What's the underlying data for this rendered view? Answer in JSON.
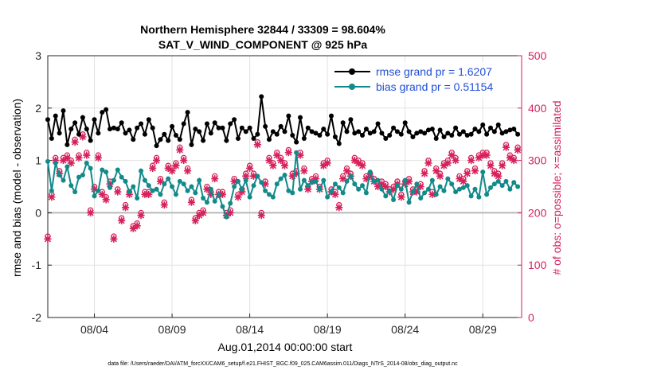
{
  "chart_data": {
    "type": "line",
    "title": "Northern Hemisphere 32844 / 33309 = 98.604%",
    "subtitle": "SAT_V_WIND_COMPONENT @ 925 hPa",
    "xlabel": "Aug.01,2014 00:00:00 start",
    "ylabel": "rmse and bias (model - observation)",
    "y2label": "# of obs: o=possible; ×=assimilated",
    "footer": "data file: /Users/raeder/DAI/ATM_forcXX/CAM6_setup/f.e21.FHIST_BGC.f09_025.CAM6assim.011/Diags_NTrS_2014-08/obs_diag_output.nc",
    "xlim": [
      1,
      31.5
    ],
    "ylim": [
      -2,
      3
    ],
    "y2lim": [
      0,
      500
    ],
    "x_ticks": [
      4,
      9,
      14,
      19,
      24,
      29
    ],
    "x_tick_labels": [
      "08/04",
      "08/09",
      "08/14",
      "08/19",
      "08/24",
      "08/29"
    ],
    "y_ticks": [
      -2,
      -1,
      0,
      1,
      2,
      3
    ],
    "y_tick_labels": [
      "-2",
      "-1",
      "0",
      "1",
      "2",
      "3"
    ],
    "y2_ticks": [
      0,
      100,
      200,
      300,
      400,
      500
    ],
    "y2_tick_labels": [
      "0",
      "100",
      "200",
      "300",
      "400",
      "500"
    ],
    "grid": true,
    "legend_position": "top-right",
    "zero_line": 0,
    "colors": {
      "rmse": "#000000",
      "bias": "#138a8a",
      "obs": "#d6215b",
      "legend_text": "#1f4fd6",
      "right_axis": "#d6215b"
    },
    "x": [
      1.0,
      1.25,
      1.5,
      1.75,
      2.0,
      2.25,
      2.5,
      2.75,
      3.0,
      3.25,
      3.5,
      3.75,
      4.0,
      4.25,
      4.5,
      4.75,
      5.0,
      5.25,
      5.5,
      5.75,
      6.0,
      6.25,
      6.5,
      6.75,
      7.0,
      7.25,
      7.5,
      7.75,
      8.0,
      8.25,
      8.5,
      8.75,
      9.0,
      9.25,
      9.5,
      9.75,
      10.0,
      10.25,
      10.5,
      10.75,
      11.0,
      11.25,
      11.5,
      11.75,
      12.0,
      12.25,
      12.5,
      12.75,
      13.0,
      13.25,
      13.5,
      13.75,
      14.0,
      14.25,
      14.5,
      14.75,
      15.0,
      15.25,
      15.5,
      15.75,
      16.0,
      16.25,
      16.5,
      16.75,
      17.0,
      17.25,
      17.5,
      17.75,
      18.0,
      18.25,
      18.5,
      18.75,
      19.0,
      19.25,
      19.5,
      19.75,
      20.0,
      20.25,
      20.5,
      20.75,
      21.0,
      21.25,
      21.5,
      21.75,
      22.0,
      22.25,
      22.5,
      22.75,
      23.0,
      23.25,
      23.5,
      23.75,
      24.0,
      24.25,
      24.5,
      24.75,
      25.0,
      25.25,
      25.5,
      25.75,
      26.0,
      26.25,
      26.5,
      26.75,
      27.0,
      27.25,
      27.5,
      27.75,
      28.0,
      28.25,
      28.5,
      28.75,
      29.0,
      29.25,
      29.5,
      29.75,
      30.0,
      30.25,
      30.5,
      30.75,
      31.0,
      31.25
    ],
    "series": [
      {
        "name": "rmse grand pr = 1.6207",
        "values": [
          1.78,
          1.42,
          1.85,
          1.52,
          1.95,
          1.3,
          1.6,
          1.72,
          1.5,
          1.82,
          1.6,
          1.38,
          1.78,
          1.52,
          1.92,
          1.97,
          1.6,
          1.62,
          1.6,
          1.72,
          1.52,
          1.58,
          1.4,
          1.62,
          1.7,
          1.5,
          1.78,
          1.62,
          1.28,
          1.4,
          1.5,
          1.38,
          1.65,
          1.48,
          1.4,
          1.7,
          1.92,
          1.3,
          1.6,
          1.55,
          1.38,
          1.7,
          1.52,
          1.72,
          1.62,
          1.62,
          1.38,
          1.7,
          1.78,
          1.42,
          1.62,
          1.55,
          1.62,
          1.42,
          1.5,
          2.22,
          1.65,
          1.4,
          1.55,
          1.5,
          1.65,
          1.55,
          1.85,
          1.48,
          1.35,
          1.82,
          1.42,
          1.62,
          1.55,
          1.52,
          1.48,
          1.6,
          1.5,
          1.85,
          1.45,
          1.32,
          1.72,
          1.55,
          1.78,
          1.52,
          1.55,
          1.48,
          1.6,
          1.52,
          1.55,
          1.7,
          1.52,
          1.42,
          1.48,
          1.62,
          1.55,
          1.5,
          1.72,
          1.55,
          1.45,
          1.52,
          1.55,
          1.52,
          1.58,
          1.6,
          1.42,
          1.58,
          1.45,
          1.52,
          1.48,
          1.62,
          1.5,
          1.55,
          1.48,
          1.5,
          1.6,
          1.55,
          1.68,
          1.5,
          1.62,
          1.55,
          1.68,
          1.52,
          1.55,
          1.58,
          1.6,
          1.5
        ],
        "color": "#000000"
      },
      {
        "name": "bias grand pr = 0.51154",
        "values": [
          0.98,
          0.42,
          0.95,
          0.72,
          0.62,
          0.88,
          0.52,
          0.4,
          0.68,
          0.72,
          0.95,
          0.85,
          0.32,
          0.42,
          0.82,
          0.78,
          0.48,
          0.62,
          0.82,
          0.68,
          0.6,
          0.4,
          0.5,
          0.28,
          0.8,
          0.62,
          0.52,
          0.42,
          0.45,
          0.35,
          0.55,
          0.65,
          0.5,
          0.35,
          0.6,
          0.55,
          0.42,
          0.5,
          0.38,
          0.62,
          0.28,
          0.2,
          0.45,
          0.22,
          0.35,
          0.12,
          -0.08,
          0.18,
          0.5,
          0.6,
          0.45,
          0.62,
          0.3,
          0.52,
          0.7,
          0.58,
          0.42,
          0.35,
          0.3,
          0.55,
          0.65,
          0.72,
          0.42,
          0.38,
          1.15,
          0.45,
          0.62,
          0.52,
          0.58,
          0.6,
          0.45,
          0.62,
          0.3,
          0.4,
          0.55,
          0.48,
          0.38,
          0.6,
          0.7,
          0.55,
          0.45,
          0.52,
          0.38,
          0.78,
          0.6,
          0.62,
          0.45,
          0.32,
          0.42,
          0.25,
          0.52,
          0.45,
          0.62,
          0.2,
          0.4,
          0.55,
          0.28,
          0.38,
          0.45,
          0.62,
          0.35,
          0.5,
          0.42,
          0.65,
          0.55,
          0.4,
          0.45,
          0.48,
          0.52,
          0.32,
          0.45,
          0.3,
          0.78,
          0.35,
          0.48,
          0.55,
          0.6,
          0.52,
          0.6,
          0.45,
          0.58,
          0.5
        ],
        "color": "#138a8a"
      }
    ],
    "obs_assimilated": [
      150,
      230,
      300,
      275,
      300,
      305,
      295,
      335,
      305,
      345,
      310,
      200,
      245,
      305,
      235,
      225,
      255,
      150,
      240,
      185,
      210,
      235,
      170,
      175,
      195,
      235,
      235,
      285,
      300,
      260,
      215,
      285,
      280,
      290,
      320,
      300,
      280,
      220,
      185,
      195,
      200,
      245,
      235,
      265,
      235,
      235,
      195,
      200,
      260,
      230,
      240,
      270,
      285,
      270,
      330,
      195,
      255,
      300,
      290,
      310,
      300,
      290,
      315,
      270,
      275,
      310,
      280,
      245,
      260,
      265,
      245,
      290,
      295,
      240,
      235,
      210,
      265,
      280,
      270,
      300,
      295,
      290,
      265,
      270,
      260,
      250,
      255,
      250,
      240,
      245,
      255,
      230,
      255,
      260,
      240,
      240,
      250,
      275,
      295,
      235,
      280,
      270,
      290,
      295,
      310,
      300,
      265,
      260,
      275,
      300,
      280,
      305,
      310,
      310,
      290,
      275,
      270,
      290,
      325,
      305,
      300,
      320
    ],
    "obs_possible": [
      155,
      235,
      305,
      280,
      305,
      310,
      300,
      340,
      310,
      350,
      315,
      205,
      250,
      310,
      240,
      230,
      260,
      155,
      245,
      190,
      215,
      240,
      175,
      180,
      200,
      240,
      240,
      290,
      305,
      265,
      220,
      290,
      285,
      295,
      325,
      305,
      285,
      225,
      190,
      200,
      205,
      250,
      240,
      270,
      240,
      240,
      200,
      205,
      265,
      235,
      245,
      275,
      290,
      275,
      335,
      200,
      260,
      305,
      295,
      315,
      305,
      295,
      320,
      275,
      280,
      315,
      285,
      250,
      265,
      270,
      250,
      295,
      300,
      245,
      240,
      215,
      270,
      285,
      275,
      305,
      300,
      295,
      270,
      275,
      265,
      255,
      260,
      255,
      245,
      250,
      260,
      235,
      260,
      265,
      245,
      245,
      255,
      280,
      300,
      240,
      285,
      275,
      295,
      300,
      315,
      305,
      270,
      265,
      280,
      305,
      285,
      310,
      315,
      315,
      295,
      280,
      275,
      295,
      330,
      310,
      305,
      325
    ]
  }
}
